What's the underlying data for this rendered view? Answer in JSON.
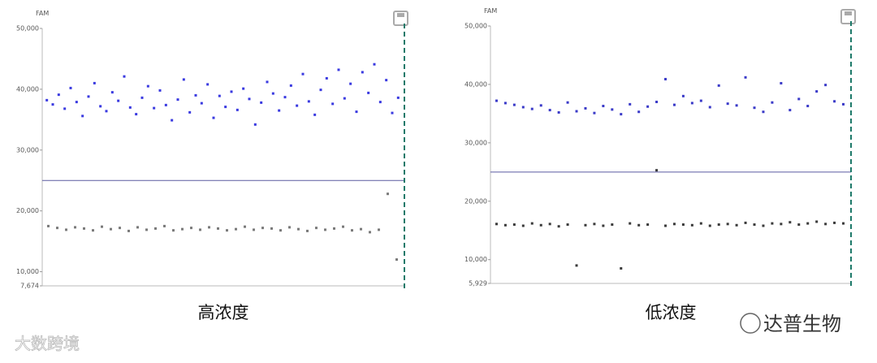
{
  "chart_data": [
    {
      "type": "scatter",
      "y_label": "FAM",
      "caption": "高浓度",
      "ylim": [
        7674,
        50000
      ],
      "yticks": [
        {
          "value": 7674,
          "label": "7,674"
        },
        {
          "value": 10000,
          "label": "10,000"
        },
        {
          "value": 20000,
          "label": "20,000"
        },
        {
          "value": 30000,
          "label": "30,000"
        },
        {
          "value": 40000,
          "label": "40,000"
        },
        {
          "value": 50000,
          "label": "50,000"
        }
      ],
      "threshold": 25000,
      "series": [
        {
          "color": "#3a3ae0",
          "values": [
            38200,
            37500,
            39100,
            36800,
            40200,
            37900,
            35600,
            38800,
            41000,
            37200,
            36400,
            39500,
            38100,
            42100,
            37000,
            35900,
            38600,
            40500,
            36900,
            39800,
            37400,
            34900,
            38300,
            41600,
            36200,
            39000,
            37700,
            40800,
            35300,
            38900,
            37100,
            39600,
            36600,
            40100,
            38400,
            34200,
            37800,
            41200,
            39300,
            36500,
            38700,
            40600,
            37300,
            42500,
            38000,
            35800,
            39900,
            41800,
            37600,
            43200,
            38500,
            40900,
            36300,
            42800,
            39400,
            44100,
            37900,
            41500,
            36100,
            38600
          ]
        },
        {
          "color": "#7a7a7a",
          "values": [
            17500,
            17200,
            16900,
            17300,
            17100,
            16800,
            17400,
            17000,
            17200,
            16700,
            17300,
            16900,
            17100,
            17500,
            16800,
            17000,
            17200,
            16900,
            17300,
            17100,
            16800,
            17000,
            17400,
            16900,
            17200,
            17100,
            16800,
            17300,
            17000,
            16700,
            17200,
            16900,
            17100,
            17400,
            16800,
            17000,
            16500,
            16900,
            22800,
            12000
          ]
        }
      ]
    },
    {
      "type": "scatter",
      "y_label": "FAM",
      "caption": "低浓度",
      "ylim": [
        5929,
        50000
      ],
      "yticks": [
        {
          "value": 5929,
          "label": "5,929"
        },
        {
          "value": 10000,
          "label": "10,000"
        },
        {
          "value": 20000,
          "label": "20,000"
        },
        {
          "value": 30000,
          "label": "30,000"
        },
        {
          "value": 40000,
          "label": "40,000"
        },
        {
          "value": 50000,
          "label": "50,000"
        }
      ],
      "threshold": 25000,
      "series": [
        {
          "color": "#3a3ac8",
          "values": [
            37200,
            36800,
            36500,
            36100,
            35800,
            36400,
            35600,
            35200,
            36900,
            35400,
            35900,
            35100,
            36300,
            35700,
            34900,
            36600,
            35300,
            36200,
            37000,
            40900,
            36500,
            38000,
            36800,
            37200,
            36100,
            39800,
            36700,
            36400,
            41200,
            36000,
            35300,
            36900,
            40200,
            35600,
            37500,
            36300,
            38800,
            39900,
            37100,
            36600
          ]
        },
        {
          "color": "#3a3a3a",
          "values": [
            16100,
            15900,
            16000,
            15800,
            16200,
            15900,
            16100,
            15700,
            16000,
            9000,
            15900,
            16100,
            15800,
            16000,
            8500,
            16200,
            15900,
            16000,
            25300,
            15800,
            16100,
            16000,
            15900,
            16200,
            15800,
            16000,
            16100,
            15900,
            16300,
            16000,
            15800,
            16200,
            16100,
            16400,
            16000,
            16200,
            16500,
            16100,
            16300,
            16200
          ]
        }
      ]
    }
  ],
  "watermarks": [
    "大数跨境",
    "达普生物"
  ]
}
